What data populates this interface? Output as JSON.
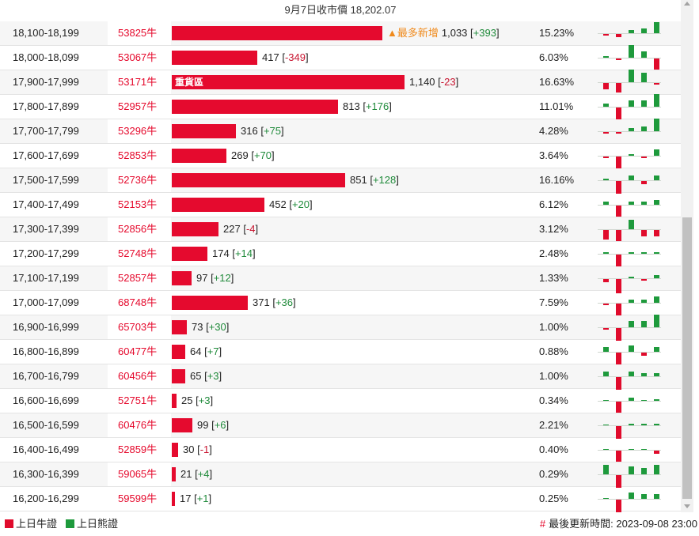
{
  "header": {
    "title": "9月7日收市價 18,202.07"
  },
  "colors": {
    "bull": "#e50a2e",
    "bear": "#1e9a3c",
    "positive_change": "#1f8a3a",
    "negative_change": "#c81530",
    "note": "#f08a1c"
  },
  "rows": [
    {
      "range": "18,100-18,199",
      "code": "53825牛",
      "value": "1,033",
      "change": "+393",
      "percent": "15.23%",
      "note": "▲最多新增",
      "bar_value": 1033,
      "spark": [
        -1,
        -2,
        2,
        3,
        7
      ]
    },
    {
      "range": "18,000-18,099",
      "code": "53067牛",
      "value": "417",
      "change": "-349",
      "percent": "6.03%",
      "bar_value": 417,
      "spark": [
        1,
        -1,
        8,
        4,
        -7
      ]
    },
    {
      "range": "17,900-17,999",
      "code": "53171牛",
      "value": "1,140",
      "change": "-23",
      "percent": "16.63%",
      "tag": "重貨區",
      "bar_value": 1140,
      "spark": [
        -4,
        -6,
        8,
        6,
        -1
      ]
    },
    {
      "range": "17,800-17,899",
      "code": "52957牛",
      "value": "813",
      "change": "+176",
      "percent": "11.01%",
      "bar_value": 813,
      "spark": [
        2,
        -8,
        4,
        4,
        8
      ]
    },
    {
      "range": "17,700-17,799",
      "code": "53296牛",
      "value": "316",
      "change": "+75",
      "percent": "4.28%",
      "bar_value": 316,
      "spark": [
        -1,
        -1,
        2,
        3,
        8
      ]
    },
    {
      "range": "17,600-17,699",
      "code": "52853牛",
      "value": "269",
      "change": "+70",
      "percent": "3.64%",
      "bar_value": 269,
      "spark": [
        -1,
        -8,
        1,
        -1,
        4
      ]
    },
    {
      "range": "17,500-17,599",
      "code": "52736牛",
      "value": "851",
      "change": "+128",
      "percent": "16.16%",
      "bar_value": 851,
      "spark": [
        1,
        -8,
        3,
        -2,
        3
      ]
    },
    {
      "range": "17,400-17,499",
      "code": "52153牛",
      "value": "452",
      "change": "+20",
      "percent": "6.12%",
      "bar_value": 452,
      "spark": [
        2,
        -7,
        2,
        2,
        3
      ]
    },
    {
      "range": "17,300-17,399",
      "code": "52856牛",
      "value": "227",
      "change": "-4",
      "percent": "3.12%",
      "bar_value": 227,
      "spark": [
        -6,
        -7,
        6,
        -4,
        -4
      ]
    },
    {
      "range": "17,200-17,299",
      "code": "52748牛",
      "value": "174",
      "change": "+14",
      "percent": "2.48%",
      "bar_value": 174,
      "spark": [
        1,
        -8,
        1,
        1,
        1
      ]
    },
    {
      "range": "17,100-17,199",
      "code": "52857牛",
      "value": "97",
      "change": "+12",
      "percent": "1.33%",
      "bar_value": 97,
      "spark": [
        -2,
        -9,
        1,
        -1,
        2
      ]
    },
    {
      "range": "17,000-17,099",
      "code": "68748牛",
      "value": "371",
      "change": "+36",
      "percent": "7.59%",
      "bar_value": 371,
      "spark": [
        -1,
        -8,
        2,
        2,
        4
      ]
    },
    {
      "range": "16,900-16,999",
      "code": "65703牛",
      "value": "73",
      "change": "+30",
      "percent": "1.00%",
      "bar_value": 73,
      "spark": [
        -1,
        -8,
        4,
        4,
        8
      ]
    },
    {
      "range": "16,800-16,899",
      "code": "60477牛",
      "value": "64",
      "change": "+7",
      "percent": "0.88%",
      "bar_value": 64,
      "spark": [
        3,
        -8,
        4,
        -2,
        3
      ]
    },
    {
      "range": "16,700-16,799",
      "code": "60456牛",
      "value": "65",
      "change": "+3",
      "percent": "1.00%",
      "bar_value": 65,
      "spark": [
        3,
        -8,
        3,
        2,
        2
      ]
    },
    {
      "range": "16,600-16,699",
      "code": "52751牛",
      "value": "25",
      "change": "+3",
      "percent": "0.34%",
      "bar_value": 25,
      "spark": [
        0,
        -7,
        2,
        0,
        1
      ]
    },
    {
      "range": "16,500-16,599",
      "code": "60476牛",
      "value": "99",
      "change": "+6",
      "percent": "2.21%",
      "bar_value": 99,
      "spark": [
        0,
        -8,
        1,
        1,
        1
      ]
    },
    {
      "range": "16,400-16,499",
      "code": "52859牛",
      "value": "30",
      "change": "-1",
      "percent": "0.40%",
      "bar_value": 30,
      "spark": [
        0,
        -7,
        0,
        0,
        -2
      ]
    },
    {
      "range": "16,300-16,399",
      "code": "59065牛",
      "value": "21",
      "change": "+4",
      "percent": "0.29%",
      "bar_value": 21,
      "spark": [
        6,
        -8,
        5,
        4,
        6
      ]
    },
    {
      "range": "16,200-16,299",
      "code": "59599牛",
      "value": "17",
      "change": "+1",
      "percent": "0.25%",
      "bar_value": 17,
      "spark": [
        0,
        -8,
        4,
        3,
        3
      ]
    }
  ],
  "footer": {
    "legend": [
      {
        "label": "上日牛證",
        "color": "#e00b2c"
      },
      {
        "label": "上日熊證",
        "color": "#1e9a3c"
      }
    ],
    "hash": "#",
    "updated": "最後更新時間: 2023-09-08 23:00"
  }
}
